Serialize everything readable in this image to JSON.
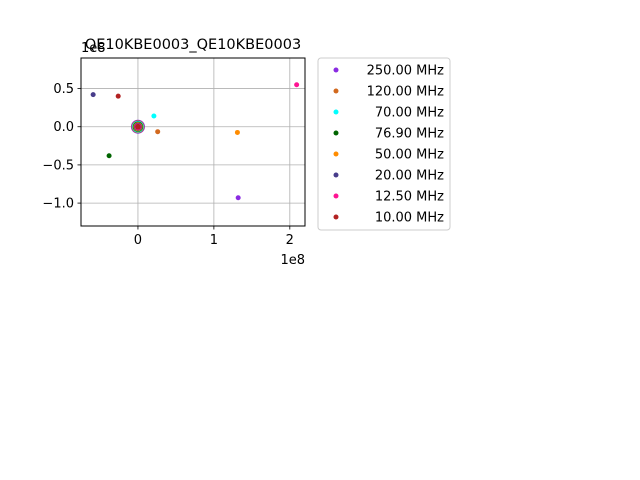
{
  "chart_data": {
    "type": "scatter",
    "title": "QE10KBE0003_QE10KBE0003",
    "xlabel": "",
    "ylabel": "",
    "x_offset_text": "1e8",
    "y_offset_text": "1e8",
    "xlim": [
      -75000000,
      220000000
    ],
    "ylim": [
      -130000000,
      90000000
    ],
    "x_ticks": [
      0,
      100000000,
      200000000
    ],
    "x_tick_labels": [
      "0",
      "1",
      "2"
    ],
    "y_ticks": [
      -100000000,
      -50000000,
      0,
      50000000
    ],
    "y_tick_labels": [
      "−1.0",
      "−0.5",
      "0.0",
      "0.5"
    ],
    "grid": true,
    "legend_position": "outside-right",
    "series": [
      {
        "name": "250.00 MHz",
        "color": "#8a2be2",
        "points": [
          [
            132000000,
            -93000000
          ],
          [
            0,
            0
          ]
        ]
      },
      {
        "name": "120.00 MHz",
        "color": "#d2691e",
        "points": [
          [
            26000000,
            -6500000
          ],
          [
            0,
            0
          ]
        ]
      },
      {
        "name": "70.00 MHz",
        "color": "#00ffff",
        "points": [
          [
            21000000,
            14000000
          ],
          [
            0,
            0
          ]
        ]
      },
      {
        "name": "76.90 MHz",
        "color": "#006400",
        "points": [
          [
            -38000000,
            -38000000
          ],
          [
            0,
            0
          ]
        ]
      },
      {
        "name": "50.00 MHz",
        "color": "#ff8c00",
        "points": [
          [
            131000000,
            -7500000
          ],
          [
            0,
            0
          ]
        ]
      },
      {
        "name": "20.00 MHz",
        "color": "#483d8b",
        "points": [
          [
            -59000000,
            42000000
          ],
          [
            0,
            0
          ]
        ]
      },
      {
        "name": "12.50 MHz",
        "color": "#ff1493",
        "points": [
          [
            209000000,
            55000000
          ],
          [
            0,
            0
          ]
        ]
      },
      {
        "name": "10.00 MHz",
        "color": "#b22222",
        "points": [
          [
            -26000000,
            40000000
          ],
          [
            0,
            0
          ]
        ]
      }
    ]
  }
}
